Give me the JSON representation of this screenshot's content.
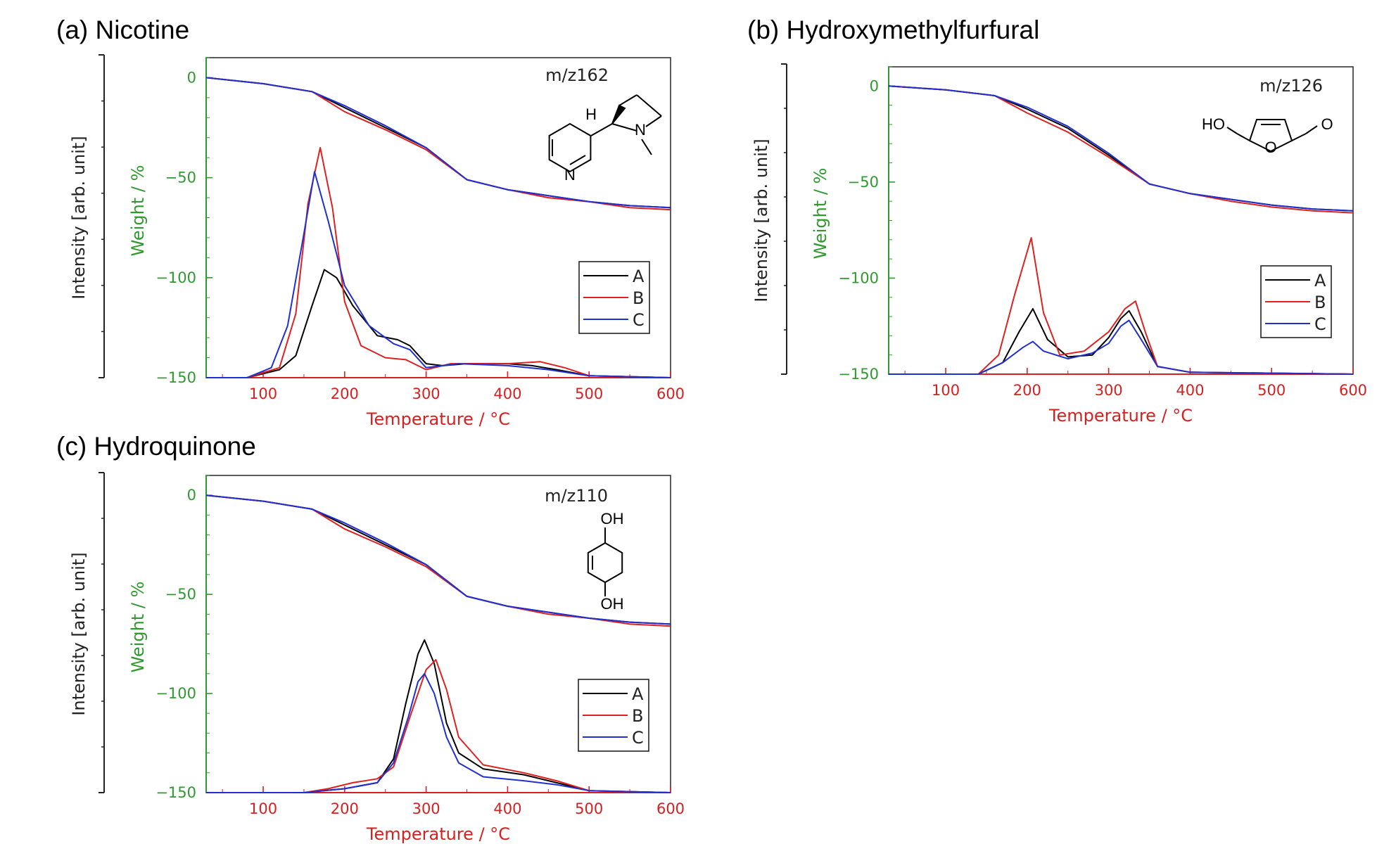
{
  "chart_data": [
    {
      "type": "line",
      "title": "(a) Nicotine",
      "annotation": "m/z162",
      "xlabel": "Temperature / °C",
      "ylabel_left": "Weight / %",
      "ylabel_outer": "Intensity [arb. unit]",
      "xlim": [
        30,
        600
      ],
      "ylim": [
        -150,
        10
      ],
      "x_ticks": [
        "100",
        "200",
        "300",
        "400",
        "500",
        "600"
      ],
      "y_ticks": [
        "0",
        "−50",
        "−100",
        "−150"
      ],
      "legend": [
        "A",
        "B",
        "C"
      ],
      "legend_position": "right",
      "series": [
        {
          "name": "A",
          "role": "weight",
          "color": "#000000",
          "x": [
            30,
            100,
            160,
            200,
            250,
            300,
            350,
            400,
            450,
            500,
            550,
            600
          ],
          "y": [
            0,
            -3,
            -7,
            -15,
            -25,
            -35,
            -51,
            -56,
            -59,
            -62,
            -64,
            -65
          ]
        },
        {
          "name": "B",
          "role": "weight",
          "color": "#e02020",
          "x": [
            30,
            100,
            160,
            200,
            250,
            300,
            350,
            400,
            450,
            500,
            550,
            600
          ],
          "y": [
            0,
            -3,
            -7,
            -17,
            -26,
            -36,
            -51,
            -56,
            -60,
            -62,
            -65,
            -66
          ]
        },
        {
          "name": "C",
          "role": "weight",
          "color": "#2030d0",
          "x": [
            30,
            100,
            160,
            200,
            250,
            300,
            350,
            400,
            450,
            500,
            550,
            600
          ],
          "y": [
            0,
            -3,
            -7,
            -14,
            -24,
            -35,
            -51,
            -56,
            -59,
            -62,
            -64,
            -65
          ]
        },
        {
          "name": "A",
          "role": "intensity",
          "color": "#000000",
          "x": [
            30,
            80,
            120,
            140,
            160,
            175,
            190,
            210,
            240,
            265,
            280,
            300,
            320,
            350,
            400,
            430,
            460,
            500,
            600
          ],
          "y": [
            -150,
            -150,
            -146,
            -139,
            -114,
            -96,
            -100,
            -114,
            -129,
            -131,
            -134,
            -143,
            -144,
            -143,
            -143,
            -144,
            -146,
            -149,
            -150
          ]
        },
        {
          "name": "B",
          "role": "intensity",
          "color": "#e02020",
          "x": [
            30,
            80,
            120,
            140,
            155,
            170,
            185,
            200,
            220,
            250,
            275,
            300,
            330,
            400,
            440,
            470,
            500,
            600
          ],
          "y": [
            -150,
            -150,
            -145,
            -118,
            -63,
            -35,
            -65,
            -112,
            -134,
            -140,
            -141,
            -146,
            -143,
            -143,
            -142,
            -145,
            -149,
            -150
          ]
        },
        {
          "name": "C",
          "role": "intensity",
          "color": "#2030d0",
          "x": [
            30,
            80,
            110,
            130,
            150,
            163,
            180,
            200,
            230,
            260,
            280,
            300,
            340,
            400,
            450,
            500,
            600
          ],
          "y": [
            -150,
            -150,
            -145,
            -124,
            -78,
            -47,
            -72,
            -104,
            -124,
            -133,
            -136,
            -145,
            -143,
            -144,
            -146,
            -149,
            -150
          ]
        }
      ]
    },
    {
      "type": "line",
      "title": "(b) Hydroxymethylfurfural",
      "annotation": "m/z126",
      "xlabel": "Temperature / °C",
      "ylabel_left": "Weight / %",
      "ylabel_outer": "Intensity [arb. unit]",
      "xlim": [
        30,
        600
      ],
      "ylim": [
        -150,
        10
      ],
      "x_ticks": [
        "100",
        "200",
        "300",
        "400",
        "500",
        "600"
      ],
      "y_ticks": [
        "0",
        "−50",
        "−100",
        "−150"
      ],
      "legend": [
        "A",
        "B",
        "C"
      ],
      "legend_position": "right",
      "series": [
        {
          "name": "A",
          "role": "weight",
          "color": "#000000",
          "x": [
            30,
            100,
            160,
            200,
            250,
            300,
            350,
            400,
            450,
            500,
            550,
            600
          ],
          "y": [
            0,
            -2,
            -5,
            -12,
            -22,
            -36,
            -51,
            -56,
            -59,
            -62,
            -64,
            -65
          ]
        },
        {
          "name": "B",
          "role": "weight",
          "color": "#e02020",
          "x": [
            30,
            100,
            160,
            200,
            250,
            300,
            350,
            400,
            450,
            500,
            550,
            600
          ],
          "y": [
            0,
            -2,
            -5,
            -14,
            -24,
            -37,
            -51,
            -56,
            -60,
            -63,
            -65,
            -66
          ]
        },
        {
          "name": "C",
          "role": "weight",
          "color": "#2030d0",
          "x": [
            30,
            100,
            160,
            200,
            250,
            300,
            350,
            400,
            450,
            500,
            550,
            600
          ],
          "y": [
            0,
            -2,
            -5,
            -11,
            -21,
            -35,
            -51,
            -56,
            -59,
            -62,
            -64,
            -65
          ]
        },
        {
          "name": "A",
          "role": "intensity",
          "color": "#000000",
          "x": [
            30,
            140,
            170,
            190,
            207,
            225,
            250,
            280,
            300,
            315,
            325,
            340,
            360,
            400,
            600
          ],
          "y": [
            -150,
            -150,
            -144,
            -128,
            -116,
            -132,
            -141,
            -140,
            -131,
            -121,
            -117,
            -128,
            -146,
            -149,
            -150
          ]
        },
        {
          "name": "B",
          "role": "intensity",
          "color": "#e02020",
          "x": [
            30,
            140,
            165,
            185,
            205,
            220,
            240,
            270,
            300,
            320,
            333,
            345,
            360,
            400,
            600
          ],
          "y": [
            -150,
            -150,
            -140,
            -108,
            -79,
            -118,
            -140,
            -138,
            -128,
            -116,
            -112,
            -128,
            -146,
            -149,
            -150
          ]
        },
        {
          "name": "C",
          "role": "intensity",
          "color": "#2030d0",
          "x": [
            30,
            140,
            170,
            195,
            207,
            220,
            250,
            280,
            300,
            315,
            325,
            340,
            360,
            400,
            600
          ],
          "y": [
            -150,
            -150,
            -144,
            -136,
            -133,
            -138,
            -142,
            -139,
            -134,
            -125,
            -122,
            -132,
            -146,
            -149,
            -150
          ]
        }
      ]
    },
    {
      "type": "line",
      "title": "(c) Hydroquinone",
      "annotation": "m/z110",
      "xlabel": "Temperature / °C",
      "ylabel_left": "Weight / %",
      "ylabel_outer": "Intensity [arb. unit]",
      "xlim": [
        30,
        600
      ],
      "ylim": [
        -150,
        10
      ],
      "x_ticks": [
        "100",
        "200",
        "300",
        "400",
        "500",
        "600"
      ],
      "y_ticks": [
        "0",
        "−50",
        "−100",
        "−150"
      ],
      "legend": [
        "A",
        "B",
        "C"
      ],
      "legend_position": "right",
      "series": [
        {
          "name": "A",
          "role": "weight",
          "color": "#000000",
          "x": [
            30,
            100,
            160,
            200,
            250,
            300,
            350,
            400,
            450,
            500,
            550,
            600
          ],
          "y": [
            0,
            -3,
            -7,
            -15,
            -25,
            -35,
            -51,
            -56,
            -59,
            -62,
            -64,
            -65
          ]
        },
        {
          "name": "B",
          "role": "weight",
          "color": "#e02020",
          "x": [
            30,
            100,
            160,
            200,
            250,
            300,
            350,
            400,
            450,
            500,
            550,
            600
          ],
          "y": [
            0,
            -3,
            -7,
            -17,
            -26,
            -36,
            -51,
            -56,
            -60,
            -62,
            -65,
            -66
          ]
        },
        {
          "name": "C",
          "role": "weight",
          "color": "#2030d0",
          "x": [
            30,
            100,
            160,
            200,
            250,
            300,
            350,
            400,
            450,
            500,
            550,
            600
          ],
          "y": [
            0,
            -3,
            -7,
            -14,
            -24,
            -35,
            -51,
            -56,
            -59,
            -62,
            -64,
            -65
          ]
        },
        {
          "name": "A",
          "role": "intensity",
          "color": "#000000",
          "x": [
            30,
            150,
            200,
            240,
            260,
            275,
            290,
            298,
            310,
            325,
            340,
            370,
            420,
            460,
            500,
            600
          ],
          "y": [
            -150,
            -150,
            -148,
            -145,
            -133,
            -105,
            -80,
            -73,
            -85,
            -115,
            -130,
            -138,
            -141,
            -145,
            -149,
            -150
          ]
        },
        {
          "name": "B",
          "role": "intensity",
          "color": "#e02020",
          "x": [
            30,
            150,
            180,
            210,
            240,
            260,
            280,
            300,
            312,
            325,
            340,
            370,
            420,
            460,
            500,
            600
          ],
          "y": [
            -150,
            -150,
            -148,
            -145,
            -143,
            -137,
            -112,
            -88,
            -83,
            -98,
            -122,
            -136,
            -140,
            -144,
            -149,
            -150
          ]
        },
        {
          "name": "C",
          "role": "intensity",
          "color": "#2030d0",
          "x": [
            30,
            150,
            200,
            240,
            260,
            278,
            290,
            298,
            310,
            325,
            340,
            370,
            420,
            460,
            500,
            600
          ],
          "y": [
            -150,
            -150,
            -148,
            -145,
            -135,
            -112,
            -94,
            -90,
            -100,
            -122,
            -135,
            -142,
            -144,
            -146,
            -149,
            -150
          ]
        }
      ]
    }
  ]
}
